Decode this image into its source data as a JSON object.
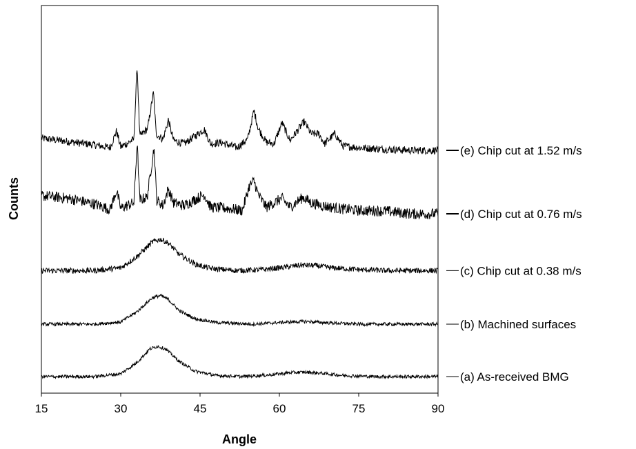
{
  "chart_data": {
    "type": "line",
    "xlabel": "Angle",
    "ylabel": "Counts",
    "xlim": [
      15,
      90
    ],
    "xticks": [
      "15",
      "30",
      "45",
      "60",
      "75",
      "90"
    ],
    "grid": false,
    "legend_position": "right",
    "series": [
      {
        "name": "(e) Chip cut at 1.52 m/s",
        "baseline": 4.1,
        "points": [
          [
            15,
            0.22
          ],
          [
            20,
            0.16
          ],
          [
            25,
            0.1
          ],
          [
            28,
            0.05
          ],
          [
            29.2,
            0.35
          ],
          [
            30,
            0.06
          ],
          [
            32.5,
            0.2
          ],
          [
            33.1,
            1.55
          ],
          [
            33.6,
            0.25
          ],
          [
            35.1,
            0.4
          ],
          [
            36.2,
            1.05
          ],
          [
            36.7,
            0.3
          ],
          [
            38,
            0.2
          ],
          [
            39,
            0.55
          ],
          [
            40,
            0.18
          ],
          [
            42,
            0.12
          ],
          [
            45.8,
            0.38
          ],
          [
            47,
            0.12
          ],
          [
            49,
            0.14
          ],
          [
            52,
            0.05
          ],
          [
            54,
            0.2
          ],
          [
            55.2,
            0.72
          ],
          [
            56,
            0.4
          ],
          [
            57.5,
            0.15
          ],
          [
            59,
            0.12
          ],
          [
            60.5,
            0.5
          ],
          [
            62,
            0.18
          ],
          [
            64.7,
            0.52
          ],
          [
            66,
            0.3
          ],
          [
            67.5,
            0.3
          ],
          [
            68.5,
            0.12
          ],
          [
            70.5,
            0.3
          ],
          [
            72,
            0.08
          ],
          [
            75,
            0.05
          ],
          [
            80,
            0.02
          ],
          [
            85,
            0.0
          ],
          [
            90,
            0.0
          ]
        ]
      },
      {
        "name": "(d) Chip cut at 0.76 m/s",
        "baseline": 2.95,
        "points": [
          [
            15,
            0.33
          ],
          [
            20,
            0.28
          ],
          [
            25,
            0.18
          ],
          [
            28,
            0.08
          ],
          [
            29.2,
            0.42
          ],
          [
            30,
            0.1
          ],
          [
            32.5,
            0.2
          ],
          [
            33.1,
            1.3
          ],
          [
            33.6,
            0.25
          ],
          [
            35,
            0.3
          ],
          [
            36.3,
            1.2
          ],
          [
            36.8,
            0.25
          ],
          [
            38,
            0.15
          ],
          [
            39,
            0.45
          ],
          [
            40,
            0.2
          ],
          [
            42,
            0.15
          ],
          [
            45.8,
            0.35
          ],
          [
            47,
            0.12
          ],
          [
            50,
            0.1
          ],
          [
            53,
            0.06
          ],
          [
            54.3,
            0.5
          ],
          [
            55.2,
            0.6
          ],
          [
            56,
            0.35
          ],
          [
            57.5,
            0.12
          ],
          [
            60.5,
            0.28
          ],
          [
            62,
            0.12
          ],
          [
            64.5,
            0.3
          ],
          [
            66,
            0.2
          ],
          [
            68,
            0.15
          ],
          [
            71,
            0.1
          ],
          [
            75,
            0.06
          ],
          [
            80,
            0.05
          ],
          [
            85,
            0.0
          ],
          [
            90,
            0.0
          ]
        ]
      },
      {
        "name": "(c) Chip cut at 0.38 m/s",
        "baseline": 1.92,
        "points": [
          [
            15,
            0.0
          ],
          [
            25,
            0.0
          ],
          [
            30,
            0.05
          ],
          [
            33,
            0.25
          ],
          [
            36,
            0.52
          ],
          [
            37.5,
            0.57
          ],
          [
            39,
            0.5
          ],
          [
            41,
            0.3
          ],
          [
            44,
            0.12
          ],
          [
            47,
            0.04
          ],
          [
            52,
            0.0
          ],
          [
            57,
            0.02
          ],
          [
            61,
            0.06
          ],
          [
            64,
            0.1
          ],
          [
            67,
            0.09
          ],
          [
            70,
            0.05
          ],
          [
            75,
            0.02
          ],
          [
            80,
            0.0
          ],
          [
            90,
            0.0
          ]
        ]
      },
      {
        "name": "(b) Machined surfaces",
        "baseline": 0.95,
        "points": [
          [
            15,
            0.0
          ],
          [
            25,
            0.0
          ],
          [
            30,
            0.04
          ],
          [
            33,
            0.22
          ],
          [
            36,
            0.48
          ],
          [
            37.5,
            0.52
          ],
          [
            39,
            0.45
          ],
          [
            41,
            0.25
          ],
          [
            44,
            0.1
          ],
          [
            48,
            0.03
          ],
          [
            55,
            0.0
          ],
          [
            62,
            0.04
          ],
          [
            65,
            0.05
          ],
          [
            68,
            0.03
          ],
          [
            75,
            0.0
          ],
          [
            90,
            0.0
          ]
        ]
      },
      {
        "name": "(a) As-received BMG",
        "baseline": 0.0,
        "points": [
          [
            15,
            0.0
          ],
          [
            25,
            0.0
          ],
          [
            30,
            0.05
          ],
          [
            33,
            0.25
          ],
          [
            35.5,
            0.5
          ],
          [
            37,
            0.55
          ],
          [
            38.5,
            0.5
          ],
          [
            41,
            0.28
          ],
          [
            44,
            0.1
          ],
          [
            48,
            0.02
          ],
          [
            53,
            0.0
          ],
          [
            58,
            0.03
          ],
          [
            62,
            0.07
          ],
          [
            65,
            0.08
          ],
          [
            68,
            0.06
          ],
          [
            72,
            0.02
          ],
          [
            78,
            0.0
          ],
          [
            90,
            0.0
          ]
        ]
      }
    ]
  }
}
